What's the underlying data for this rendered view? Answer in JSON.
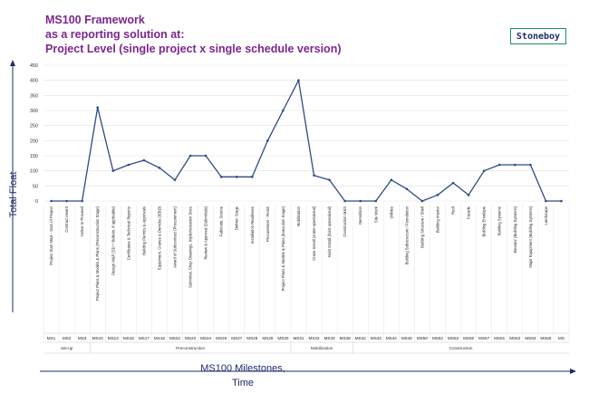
{
  "title_lines": [
    "MS100 Framework",
    "as a reporting solution at:",
    "Project Level   (single project x single schedule version)"
  ],
  "brand": "Stoneboy",
  "colors": {
    "title": "#7b2590",
    "line": "#2e4a87",
    "axis_label": "#1e2a6e",
    "brand_border": "#1f8f6a"
  },
  "chart_data": {
    "type": "line",
    "ylabel": "Total Float",
    "xlabel_lines": [
      "MS100 Milestones,",
      "Time"
    ],
    "ylim": [
      0,
      450
    ],
    "yticks": [
      0,
      50,
      100,
      150,
      200,
      250,
      300,
      350,
      400,
      450
    ],
    "grid": true,
    "milestone_names": [
      "Project Start M&S - Start of Project",
      "Contract Award",
      "Notice to Proceed",
      "Project Plans & Models & Plans (Preconstruction Stage)",
      "Design M&P (SD + Bulletin, if applicable)",
      "Certificates & Technical Reports",
      "Building Permits & Approvals",
      "Equipment, Cranes & Derricks (IEBD)",
      "Award of Subcontract (Procurement)",
      "Submittal, Shop Drawings, Implementation Docs",
      "Review & Approval (Submittals)",
      "Fabricate, Source",
      "Deliver, Stage",
      "Installation Readiness",
      "Procurement - Finish",
      "Project Plans & Models & Plans (Execution Stage)",
      "Mobilization",
      "Crane Install (crane operational)",
      "Hoist Install (hoist operational)",
      "Construction M&S",
      "Demolition",
      "Site Work",
      "Utilities",
      "Building Substructure / Foundation",
      "Building Structure / Shell",
      "Building Interior",
      "Roof",
      "Facade",
      "Building Envelope",
      "Building Systems",
      "Elevator (Building Systems)",
      "Major Equipment (Building Systems)",
      "Landscape",
      ""
    ],
    "codes": [
      "MS1",
      "MS2",
      "MS3",
      "MS10",
      "MS14",
      "MS16",
      "MS17",
      "MS18",
      "MS22",
      "MS23",
      "MS24",
      "MS26",
      "MS27",
      "MS28",
      "MS29",
      "MS30",
      "MS31",
      "MS32",
      "MS33",
      "MS38",
      "MS42",
      "MS43",
      "MS44",
      "MS45",
      "MS50",
      "MS52",
      "MS53",
      "MS55",
      "MS57",
      "MS61",
      "MS62",
      "MS63",
      "MS65",
      "MS"
    ],
    "values": [
      0,
      0,
      0,
      310,
      100,
      120,
      135,
      110,
      70,
      150,
      150,
      80,
      80,
      80,
      200,
      300,
      400,
      85,
      70,
      0,
      0,
      0,
      70,
      40,
      0,
      20,
      60,
      20,
      100,
      120,
      120,
      120,
      0,
      0
    ],
    "phases": [
      {
        "label": "Set-up",
        "start": 0,
        "end": 2
      },
      {
        "label": "Preconstruction",
        "start": 3,
        "end": 15
      },
      {
        "label": "Mobilization",
        "start": 16,
        "end": 19
      },
      {
        "label": "Construction",
        "start": 20,
        "end": 33
      }
    ]
  }
}
